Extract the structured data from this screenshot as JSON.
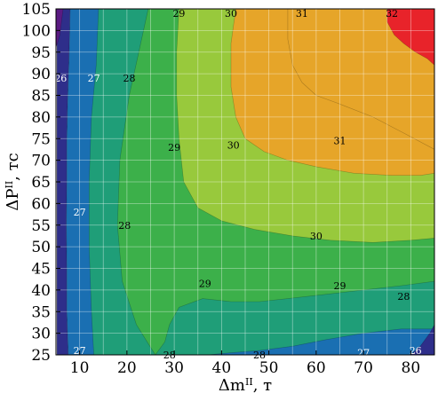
{
  "chart_data": {
    "type": "contour",
    "xlabel": "Δm",
    "xlabel_superscript": "II",
    "xlabel_unit": ", т",
    "ylabel": "ΔP",
    "ylabel_superscript": "II",
    "ylabel_unit": ", тс",
    "xlim": [
      5,
      85
    ],
    "ylim": [
      25,
      105
    ],
    "xticks": [
      "10",
      "20",
      "30",
      "40",
      "50",
      "60",
      "70",
      "80"
    ],
    "yticks": [
      "25",
      "30",
      "35",
      "40",
      "45",
      "50",
      "55",
      "60",
      "65",
      "70",
      "75",
      "80",
      "85",
      "90",
      "95",
      "100",
      "105"
    ],
    "grid": true,
    "levels": [
      26,
      27,
      28,
      29,
      30,
      31,
      32
    ],
    "level_colors": {
      "below_26": "#5a1a82",
      "26_27": "#2e2e8a",
      "27_28": "#1a6fb2",
      "28_29": "#1f9e78",
      "29_30": "#3cb04a",
      "30_31": "#98c93c",
      "31_32": "#e6a529",
      "above_32": "#e8232a"
    },
    "contour_labels": [
      {
        "text": "29",
        "x": 31,
        "y": 104,
        "color": "#000000"
      },
      {
        "text": "30",
        "x": 42,
        "y": 104,
        "color": "#000000"
      },
      {
        "text": "31",
        "x": 57,
        "y": 104,
        "color": "#000000"
      },
      {
        "text": "32",
        "x": 76,
        "y": 104,
        "color": "#000000"
      },
      {
        "text": "26",
        "x": 6,
        "y": 89,
        "color": "#ffffff"
      },
      {
        "text": "27",
        "x": 13,
        "y": 89,
        "color": "#ffffff"
      },
      {
        "text": "28",
        "x": 20.5,
        "y": 89,
        "color": "#000000"
      },
      {
        "text": "29",
        "x": 30,
        "y": 73,
        "color": "#000000"
      },
      {
        "text": "30",
        "x": 42.5,
        "y": 73.5,
        "color": "#000000"
      },
      {
        "text": "31",
        "x": 65,
        "y": 74.5,
        "color": "#000000"
      },
      {
        "text": "27",
        "x": 10,
        "y": 58,
        "color": "#ffffff"
      },
      {
        "text": "28",
        "x": 19.5,
        "y": 55,
        "color": "#000000"
      },
      {
        "text": "30",
        "x": 60,
        "y": 52.5,
        "color": "#000000"
      },
      {
        "text": "29",
        "x": 36.5,
        "y": 41.5,
        "color": "#000000"
      },
      {
        "text": "29",
        "x": 65,
        "y": 41,
        "color": "#000000"
      },
      {
        "text": "28",
        "x": 78.5,
        "y": 38.5,
        "color": "#000000"
      },
      {
        "text": "27",
        "x": 10,
        "y": 26,
        "color": "#ffffff"
      },
      {
        "text": "28",
        "x": 29,
        "y": 25,
        "color": "#000000"
      },
      {
        "text": "28",
        "x": 48,
        "y": 25,
        "color": "#000000"
      },
      {
        "text": "27",
        "x": 70,
        "y": 25.5,
        "color": "#ffffff"
      },
      {
        "text": "26",
        "x": 81,
        "y": 26,
        "color": "#ffffff"
      }
    ],
    "regions": [
      {
        "level": "26_27",
        "path": [
          [
            5.2,
            25
          ],
          [
            5.2,
            105
          ],
          [
            8,
            105
          ],
          [
            7.8,
            95
          ],
          [
            7.5,
            85
          ],
          [
            7.3,
            75
          ],
          [
            7.3,
            65
          ],
          [
            7.2,
            55
          ],
          [
            7.3,
            45
          ],
          [
            7.3,
            35
          ],
          [
            7.6,
            25
          ]
        ]
      },
      {
        "level": "27_28",
        "path": [
          [
            7.6,
            25
          ],
          [
            7.3,
            35
          ],
          [
            7.3,
            45
          ],
          [
            7.2,
            55
          ],
          [
            7.3,
            65
          ],
          [
            7.3,
            75
          ],
          [
            7.5,
            85
          ],
          [
            7.8,
            95
          ],
          [
            8,
            105
          ],
          [
            85,
            105
          ],
          [
            85,
            25
          ]
        ]
      },
      {
        "level": "28_29",
        "path": [
          [
            13,
            25
          ],
          [
            12.5,
            35
          ],
          [
            12,
            50
          ],
          [
            12,
            65
          ],
          [
            12.5,
            80
          ],
          [
            13.5,
            92
          ],
          [
            14,
            105
          ],
          [
            85,
            105
          ],
          [
            85,
            31
          ],
          [
            78,
            31
          ],
          [
            70,
            30
          ],
          [
            62,
            28.5
          ],
          [
            55,
            27
          ],
          [
            48,
            26
          ],
          [
            42,
            25.5
          ],
          [
            37,
            25
          ]
        ]
      },
      {
        "level": "29_30",
        "path": [
          [
            26,
            25
          ],
          [
            22,
            32
          ],
          [
            19,
            42
          ],
          [
            18,
            55
          ],
          [
            18.5,
            70
          ],
          [
            20.5,
            85
          ],
          [
            22.5,
            95
          ],
          [
            24.5,
            105
          ],
          [
            85,
            105
          ],
          [
            85,
            42
          ],
          [
            78,
            41
          ],
          [
            70,
            40
          ],
          [
            62,
            39
          ],
          [
            54,
            38
          ],
          [
            48,
            37.3
          ],
          [
            42,
            37.3
          ],
          [
            36,
            38
          ],
          [
            31,
            36
          ],
          [
            29,
            32
          ],
          [
            28,
            28
          ]
        ]
      },
      {
        "level": "30_31",
        "path": [
          [
            31,
            105
          ],
          [
            30.5,
            95
          ],
          [
            30.5,
            85
          ],
          [
            31,
            75
          ],
          [
            32,
            65
          ],
          [
            35,
            59
          ],
          [
            40,
            56
          ],
          [
            47,
            54
          ],
          [
            55,
            52.5
          ],
          [
            63,
            51.5
          ],
          [
            72,
            51
          ],
          [
            80,
            51.5
          ],
          [
            85,
            52
          ],
          [
            85,
            105
          ]
        ]
      },
      {
        "level": "31_32",
        "path": [
          [
            43,
            105
          ],
          [
            42,
            97
          ],
          [
            42,
            87
          ],
          [
            43,
            80
          ],
          [
            45,
            75
          ],
          [
            49,
            72
          ],
          [
            54,
            70
          ],
          [
            60,
            68.5
          ],
          [
            68,
            67
          ],
          [
            76,
            66.5
          ],
          [
            82,
            66.5
          ],
          [
            85,
            67
          ],
          [
            85,
            105
          ]
        ]
      },
      {
        "level": "31_32b",
        "path": [
          [
            54,
            105
          ],
          [
            54,
            98
          ],
          [
            55,
            92
          ],
          [
            57,
            88
          ],
          [
            60,
            85
          ],
          [
            65,
            83
          ],
          [
            72,
            80
          ],
          [
            79,
            76
          ],
          [
            85,
            72.5
          ],
          [
            85,
            105
          ]
        ]
      },
      {
        "level": "above_32",
        "path": [
          [
            75,
            105
          ],
          [
            75,
            102
          ],
          [
            76.5,
            99
          ],
          [
            78.5,
            97
          ],
          [
            81,
            95
          ],
          [
            83.5,
            93.5
          ],
          [
            85,
            92
          ],
          [
            85,
            105
          ]
        ]
      },
      {
        "level": "below_26",
        "path": [
          [
            5,
            105
          ],
          [
            5,
            96
          ],
          [
            5.8,
            99
          ],
          [
            6.5,
            105
          ]
        ]
      },
      {
        "level": "26_27",
        "path": [
          [
            80,
            25
          ],
          [
            82,
            27
          ],
          [
            84,
            30
          ],
          [
            85,
            32
          ],
          [
            85,
            25
          ]
        ]
      }
    ]
  }
}
